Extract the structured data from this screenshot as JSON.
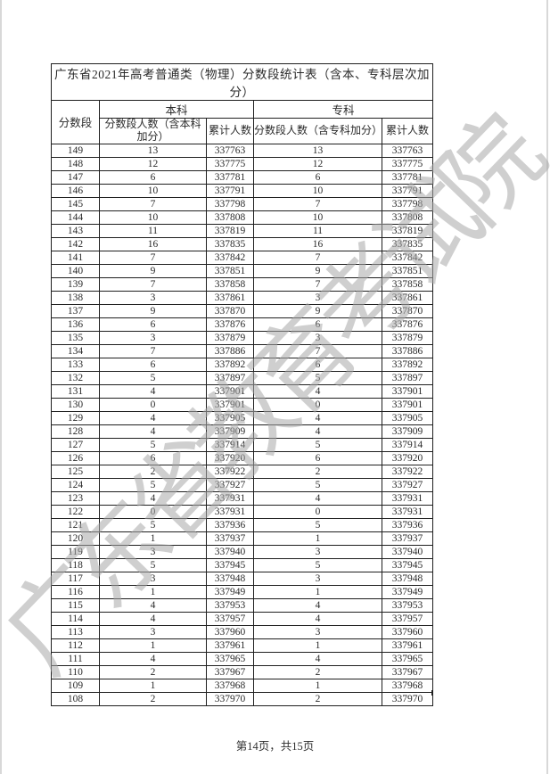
{
  "page": {
    "footer": "第14页，共15页"
  },
  "watermark": {
    "text": "广东省教育考试院",
    "color": "#c6c6c6"
  },
  "table": {
    "title": "广东省2021年高考普通类（物理）分数段统计表（含本、专科层次加分）",
    "headers": {
      "score": "分数段",
      "benke": "本科",
      "zhuanke": "专科",
      "benke_count": "分数段人数（含本科加分）",
      "benke_cum": "累计人数",
      "zhuanke_count": "分数段人数（含专科加分）",
      "zhuanke_cum": "累计人数"
    },
    "colors": {
      "border": "#1f1f1f",
      "text": "#2a2a2a"
    },
    "rows": [
      [
        149,
        13,
        337763,
        13,
        337763
      ],
      [
        148,
        12,
        337775,
        12,
        337775
      ],
      [
        147,
        6,
        337781,
        6,
        337781
      ],
      [
        146,
        10,
        337791,
        10,
        337791
      ],
      [
        145,
        7,
        337798,
        7,
        337798
      ],
      [
        144,
        10,
        337808,
        10,
        337808
      ],
      [
        143,
        11,
        337819,
        11,
        337819
      ],
      [
        142,
        16,
        337835,
        16,
        337835
      ],
      [
        141,
        7,
        337842,
        7,
        337842
      ],
      [
        140,
        9,
        337851,
        9,
        337851
      ],
      [
        139,
        7,
        337858,
        7,
        337858
      ],
      [
        138,
        3,
        337861,
        3,
        337861
      ],
      [
        137,
        9,
        337870,
        9,
        337870
      ],
      [
        136,
        6,
        337876,
        6,
        337876
      ],
      [
        135,
        3,
        337879,
        3,
        337879
      ],
      [
        134,
        7,
        337886,
        7,
        337886
      ],
      [
        133,
        6,
        337892,
        6,
        337892
      ],
      [
        132,
        5,
        337897,
        5,
        337897
      ],
      [
        131,
        4,
        337901,
        4,
        337901
      ],
      [
        130,
        0,
        337901,
        0,
        337901
      ],
      [
        129,
        4,
        337905,
        4,
        337905
      ],
      [
        128,
        4,
        337909,
        4,
        337909
      ],
      [
        127,
        5,
        337914,
        5,
        337914
      ],
      [
        126,
        6,
        337920,
        6,
        337920
      ],
      [
        125,
        2,
        337922,
        2,
        337922
      ],
      [
        124,
        5,
        337927,
        5,
        337927
      ],
      [
        123,
        4,
        337931,
        4,
        337931
      ],
      [
        122,
        0,
        337931,
        0,
        337931
      ],
      [
        121,
        5,
        337936,
        5,
        337936
      ],
      [
        120,
        1,
        337937,
        1,
        337937
      ],
      [
        119,
        3,
        337940,
        3,
        337940
      ],
      [
        118,
        5,
        337945,
        5,
        337945
      ],
      [
        117,
        3,
        337948,
        3,
        337948
      ],
      [
        116,
        1,
        337949,
        1,
        337949
      ],
      [
        115,
        4,
        337953,
        4,
        337953
      ],
      [
        114,
        4,
        337957,
        4,
        337957
      ],
      [
        113,
        3,
        337960,
        3,
        337960
      ],
      [
        112,
        1,
        337961,
        1,
        337961
      ],
      [
        111,
        4,
        337965,
        4,
        337965
      ],
      [
        110,
        2,
        337967,
        2,
        337967
      ],
      [
        109,
        1,
        337968,
        1,
        337968
      ],
      [
        108,
        2,
        337970,
        2,
        337970
      ]
    ]
  }
}
